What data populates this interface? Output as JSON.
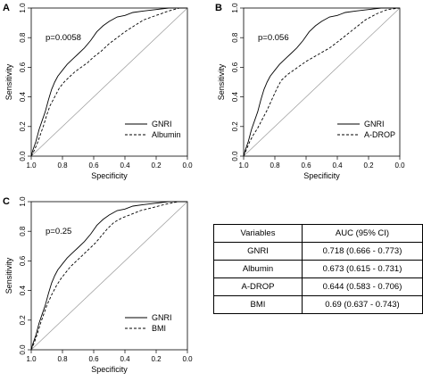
{
  "chart_data": [
    {
      "type": "line",
      "panel_label": "A",
      "annotation": "p=0.0058",
      "xlabel": "Specificity",
      "ylabel": "Sensitivity",
      "xlim": [
        1.0,
        0.0
      ],
      "ylim": [
        0.0,
        1.0
      ],
      "xticks": [
        "1.0",
        "0.8",
        "0.6",
        "0.4",
        "0.2",
        "0.0"
      ],
      "yticks": [
        "0.0",
        "0.2",
        "0.4",
        "0.6",
        "0.8",
        "1.0"
      ],
      "legend_position": "bottom-right",
      "series": [
        {
          "name": "GNRI",
          "style": "solid",
          "points": [
            [
              1.0,
              0.0
            ],
            [
              0.99,
              0.04
            ],
            [
              0.97,
              0.1
            ],
            [
              0.95,
              0.18
            ],
            [
              0.93,
              0.24
            ],
            [
              0.91,
              0.3
            ],
            [
              0.89,
              0.38
            ],
            [
              0.87,
              0.45
            ],
            [
              0.85,
              0.5
            ],
            [
              0.83,
              0.54
            ],
            [
              0.8,
              0.58
            ],
            [
              0.77,
              0.62
            ],
            [
              0.74,
              0.65
            ],
            [
              0.7,
              0.69
            ],
            [
              0.66,
              0.73
            ],
            [
              0.62,
              0.78
            ],
            [
              0.58,
              0.84
            ],
            [
              0.54,
              0.88
            ],
            [
              0.5,
              0.91
            ],
            [
              0.45,
              0.94
            ],
            [
              0.4,
              0.95
            ],
            [
              0.35,
              0.97
            ],
            [
              0.28,
              0.98
            ],
            [
              0.2,
              0.99
            ],
            [
              0.12,
              1.0
            ],
            [
              0.0,
              1.0
            ]
          ]
        },
        {
          "name": "Albumin",
          "style": "dashed",
          "points": [
            [
              1.0,
              0.0
            ],
            [
              0.98,
              0.04
            ],
            [
              0.96,
              0.09
            ],
            [
              0.94,
              0.15
            ],
            [
              0.92,
              0.21
            ],
            [
              0.9,
              0.28
            ],
            [
              0.88,
              0.34
            ],
            [
              0.85,
              0.4
            ],
            [
              0.82,
              0.46
            ],
            [
              0.79,
              0.5
            ],
            [
              0.76,
              0.53
            ],
            [
              0.72,
              0.57
            ],
            [
              0.68,
              0.6
            ],
            [
              0.64,
              0.63
            ],
            [
              0.6,
              0.67
            ],
            [
              0.55,
              0.71
            ],
            [
              0.5,
              0.76
            ],
            [
              0.45,
              0.8
            ],
            [
              0.4,
              0.84
            ],
            [
              0.34,
              0.88
            ],
            [
              0.28,
              0.92
            ],
            [
              0.2,
              0.95
            ],
            [
              0.12,
              0.98
            ],
            [
              0.05,
              1.0
            ],
            [
              0.0,
              1.0
            ]
          ]
        }
      ]
    },
    {
      "type": "line",
      "panel_label": "B",
      "annotation": "p=0.056",
      "xlabel": "Specificity",
      "ylabel": "Sensitivity",
      "xlim": [
        1.0,
        0.0
      ],
      "ylim": [
        0.0,
        1.0
      ],
      "xticks": [
        "1.0",
        "0.8",
        "0.6",
        "0.4",
        "0.2",
        "0.0"
      ],
      "yticks": [
        "0.0",
        "0.2",
        "0.4",
        "0.6",
        "0.8",
        "1.0"
      ],
      "legend_position": "bottom-right",
      "series": [
        {
          "name": "GNRI",
          "style": "solid",
          "points": [
            [
              1.0,
              0.0
            ],
            [
              0.99,
              0.04
            ],
            [
              0.97,
              0.1
            ],
            [
              0.95,
              0.18
            ],
            [
              0.93,
              0.24
            ],
            [
              0.91,
              0.3
            ],
            [
              0.89,
              0.38
            ],
            [
              0.87,
              0.45
            ],
            [
              0.85,
              0.5
            ],
            [
              0.83,
              0.54
            ],
            [
              0.8,
              0.58
            ],
            [
              0.77,
              0.62
            ],
            [
              0.74,
              0.65
            ],
            [
              0.7,
              0.69
            ],
            [
              0.66,
              0.73
            ],
            [
              0.62,
              0.78
            ],
            [
              0.58,
              0.84
            ],
            [
              0.54,
              0.88
            ],
            [
              0.5,
              0.91
            ],
            [
              0.45,
              0.94
            ],
            [
              0.4,
              0.95
            ],
            [
              0.35,
              0.97
            ],
            [
              0.28,
              0.98
            ],
            [
              0.2,
              0.99
            ],
            [
              0.12,
              1.0
            ],
            [
              0.0,
              1.0
            ]
          ]
        },
        {
          "name": "A-DROP",
          "style": "dashed",
          "points": [
            [
              1.0,
              0.0
            ],
            [
              0.98,
              0.05
            ],
            [
              0.96,
              0.1
            ],
            [
              0.94,
              0.14
            ],
            [
              0.91,
              0.19
            ],
            [
              0.88,
              0.25
            ],
            [
              0.85,
              0.31
            ],
            [
              0.82,
              0.38
            ],
            [
              0.79,
              0.45
            ],
            [
              0.76,
              0.51
            ],
            [
              0.72,
              0.55
            ],
            [
              0.68,
              0.58
            ],
            [
              0.64,
              0.61
            ],
            [
              0.6,
              0.64
            ],
            [
              0.55,
              0.67
            ],
            [
              0.5,
              0.7
            ],
            [
              0.45,
              0.73
            ],
            [
              0.4,
              0.77
            ],
            [
              0.34,
              0.82
            ],
            [
              0.28,
              0.87
            ],
            [
              0.22,
              0.92
            ],
            [
              0.15,
              0.96
            ],
            [
              0.08,
              0.99
            ],
            [
              0.0,
              1.0
            ]
          ]
        }
      ]
    },
    {
      "type": "line",
      "panel_label": "C",
      "annotation": "p=0.25",
      "xlabel": "Specificity",
      "ylabel": "Sensitivity",
      "xlim": [
        1.0,
        0.0
      ],
      "ylim": [
        0.0,
        1.0
      ],
      "xticks": [
        "1.0",
        "0.8",
        "0.6",
        "0.4",
        "0.2",
        "0.0"
      ],
      "yticks": [
        "0.0",
        "0.2",
        "0.4",
        "0.6",
        "0.8",
        "1.0"
      ],
      "legend_position": "bottom-right",
      "series": [
        {
          "name": "GNRI",
          "style": "solid",
          "points": [
            [
              1.0,
              0.0
            ],
            [
              0.99,
              0.04
            ],
            [
              0.97,
              0.1
            ],
            [
              0.95,
              0.18
            ],
            [
              0.93,
              0.24
            ],
            [
              0.91,
              0.3
            ],
            [
              0.89,
              0.38
            ],
            [
              0.87,
              0.45
            ],
            [
              0.85,
              0.5
            ],
            [
              0.83,
              0.54
            ],
            [
              0.8,
              0.58
            ],
            [
              0.77,
              0.62
            ],
            [
              0.74,
              0.65
            ],
            [
              0.7,
              0.69
            ],
            [
              0.66,
              0.73
            ],
            [
              0.62,
              0.78
            ],
            [
              0.58,
              0.84
            ],
            [
              0.54,
              0.88
            ],
            [
              0.5,
              0.91
            ],
            [
              0.45,
              0.94
            ],
            [
              0.4,
              0.95
            ],
            [
              0.35,
              0.97
            ],
            [
              0.28,
              0.98
            ],
            [
              0.2,
              0.99
            ],
            [
              0.12,
              1.0
            ],
            [
              0.0,
              1.0
            ]
          ]
        },
        {
          "name": "BMI",
          "style": "dashed",
          "points": [
            [
              1.0,
              0.0
            ],
            [
              0.98,
              0.05
            ],
            [
              0.96,
              0.11
            ],
            [
              0.94,
              0.18
            ],
            [
              0.92,
              0.24
            ],
            [
              0.9,
              0.3
            ],
            [
              0.87,
              0.37
            ],
            [
              0.84,
              0.43
            ],
            [
              0.81,
              0.48
            ],
            [
              0.78,
              0.52
            ],
            [
              0.75,
              0.56
            ],
            [
              0.71,
              0.6
            ],
            [
              0.67,
              0.64
            ],
            [
              0.63,
              0.68
            ],
            [
              0.59,
              0.72
            ],
            [
              0.55,
              0.77
            ],
            [
              0.51,
              0.82
            ],
            [
              0.47,
              0.86
            ],
            [
              0.42,
              0.89
            ],
            [
              0.37,
              0.91
            ],
            [
              0.3,
              0.94
            ],
            [
              0.22,
              0.96
            ],
            [
              0.15,
              0.98
            ],
            [
              0.06,
              1.0
            ],
            [
              0.0,
              1.0
            ]
          ]
        }
      ]
    },
    {
      "type": "table",
      "columns": [
        "Variables",
        "AUC (95% CI)"
      ],
      "rows": [
        [
          "GNRI",
          "0.718 (0.666 - 0.773)"
        ],
        [
          "Albumin",
          "0.673 (0.615 - 0.731)"
        ],
        [
          "A-DROP",
          "0.644 (0.583 - 0.706)"
        ],
        [
          "BMI",
          "0.69 (0.637 - 0.743)"
        ]
      ]
    }
  ]
}
